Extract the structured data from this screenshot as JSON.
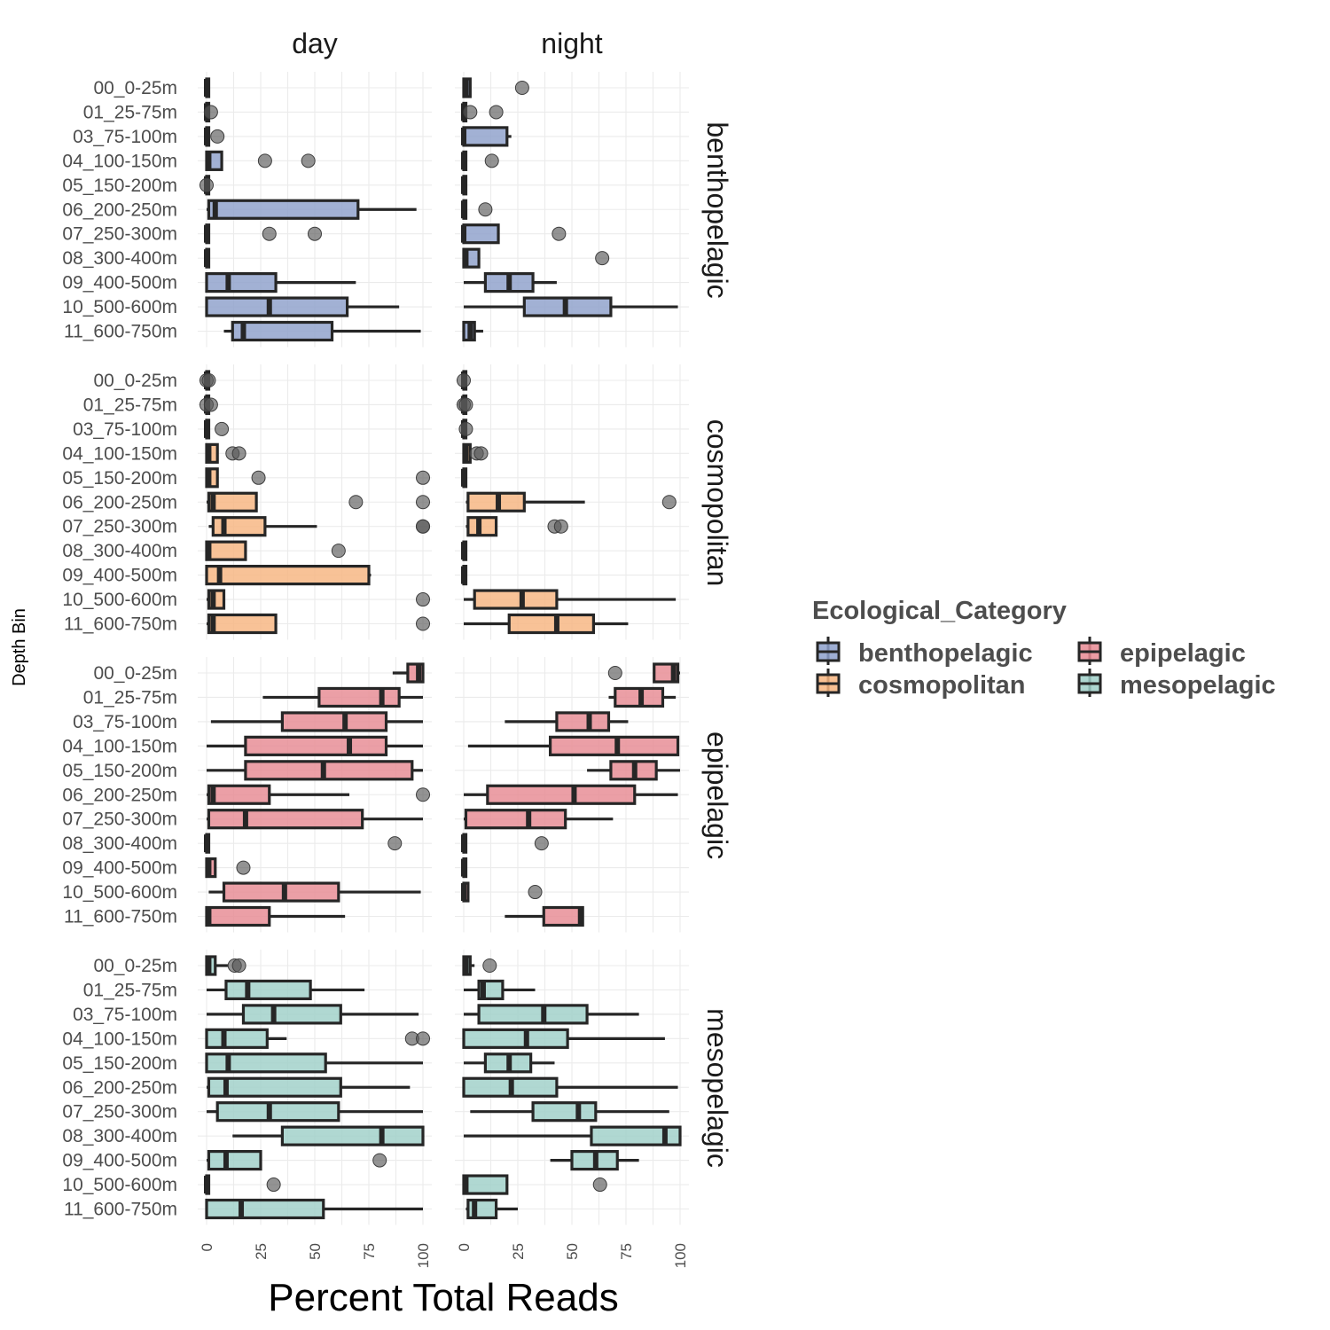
{
  "chart_data": {
    "type": "boxplot",
    "orientation": "horizontal",
    "facet_columns": [
      "day",
      "night"
    ],
    "facet_rows": [
      "benthopelagic",
      "cosmopolitan",
      "epipelagic",
      "mesopelagic"
    ],
    "xlabel": "Percent Total Reads",
    "ylabel": "Depth Bin",
    "xlim": [
      0,
      100
    ],
    "xticks": [
      "0",
      "25",
      "50",
      "75",
      "100"
    ],
    "depth_bins": [
      "00_0-25m",
      "01_25-75m",
      "03_75-100m",
      "04_100-150m",
      "05_150-200m",
      "06_200-250m",
      "07_250-300m",
      "08_300-400m",
      "09_400-500m",
      "10_500-600m",
      "11_600-750m"
    ],
    "legend": {
      "title": "Ecological_Category",
      "items": [
        {
          "label": "benthopelagic",
          "color": "#8da0cb"
        },
        {
          "label": "epipelagic",
          "color": "#e78a93"
        },
        {
          "label": "cosmopolitan",
          "color": "#f7b580"
        },
        {
          "label": "mesopelagic",
          "color": "#9fcfc8"
        }
      ]
    },
    "colors": {
      "benthopelagic": "#8da0cb",
      "cosmopolitan": "#f7b580",
      "epipelagic": "#e78a93",
      "mesopelagic": "#9fcfc8"
    },
    "panels": [
      {
        "row": "benthopelagic",
        "col": "day",
        "boxes": [
          [
            0,
            0,
            0,
            1,
            1,
            []
          ],
          [
            0,
            0,
            0,
            1,
            1,
            [
              2
            ]
          ],
          [
            0,
            0,
            0,
            1,
            1,
            [
              5
            ]
          ],
          [
            0,
            0,
            1,
            7,
            7,
            [
              27,
              47
            ]
          ],
          [
            0,
            0,
            0,
            0,
            0,
            [
              0
            ]
          ],
          [
            0,
            1,
            4,
            70,
            97,
            []
          ],
          [
            0,
            0,
            0,
            1,
            1,
            [
              29,
              50
            ]
          ],
          [
            0,
            0,
            0,
            1,
            1,
            []
          ],
          [
            0,
            0,
            10,
            32,
            69,
            []
          ],
          [
            0,
            0,
            29,
            65,
            89,
            []
          ],
          [
            8,
            12,
            17,
            58,
            99,
            []
          ]
        ]
      },
      {
        "row": "benthopelagic",
        "col": "night",
        "boxes": [
          [
            0,
            0,
            1,
            3,
            3,
            [
              27
            ]
          ],
          [
            0,
            0,
            0,
            1,
            1,
            [
              3,
              15
            ]
          ],
          [
            0,
            0,
            0,
            20,
            22,
            []
          ],
          [
            0,
            0,
            0,
            1,
            1,
            [
              13
            ]
          ],
          [
            0,
            0,
            0,
            1,
            1,
            []
          ],
          [
            0,
            0,
            0,
            1,
            1,
            [
              10
            ]
          ],
          [
            0,
            0,
            0,
            16,
            16,
            [
              44
            ]
          ],
          [
            0,
            0,
            1,
            7,
            7,
            [
              64
            ]
          ],
          [
            0,
            10,
            21,
            32,
            43,
            []
          ],
          [
            0,
            28,
            47,
            68,
            99,
            []
          ],
          [
            0,
            0,
            3,
            5,
            9,
            []
          ]
        ]
      },
      {
        "row": "cosmopolitan",
        "col": "day",
        "boxes": [
          [
            0,
            0,
            0,
            1,
            1,
            [
              0,
              1
            ]
          ],
          [
            0,
            0,
            0,
            1,
            1,
            [
              0,
              2
            ]
          ],
          [
            0,
            0,
            0,
            1,
            1,
            [
              7
            ]
          ],
          [
            0,
            0,
            1,
            5,
            5,
            [
              12,
              15
            ]
          ],
          [
            0,
            0,
            1,
            5,
            5,
            [
              24,
              100
            ]
          ],
          [
            0,
            1,
            3,
            23,
            23,
            [
              69,
              100
            ]
          ],
          [
            1,
            3,
            8,
            27,
            51,
            [
              100,
              100
            ]
          ],
          [
            0,
            0,
            1,
            18,
            18,
            [
              61
            ]
          ],
          [
            0,
            0,
            6,
            75,
            76,
            []
          ],
          [
            0,
            1,
            3,
            8,
            8,
            [
              100
            ]
          ],
          [
            0,
            1,
            3,
            32,
            32,
            [
              100
            ]
          ]
        ]
      },
      {
        "row": "cosmopolitan",
        "col": "night",
        "boxes": [
          [
            0,
            0,
            0,
            1,
            1,
            [
              0
            ]
          ],
          [
            0,
            0,
            0,
            1,
            1,
            [
              0,
              1
            ]
          ],
          [
            0,
            0,
            0,
            1,
            1,
            [
              1
            ]
          ],
          [
            0,
            0,
            1,
            3,
            3,
            [
              6,
              8
            ]
          ],
          [
            0,
            0,
            0,
            1,
            1,
            []
          ],
          [
            1,
            2,
            16,
            28,
            56,
            [
              95
            ]
          ],
          [
            1,
            2,
            7,
            15,
            15,
            [
              42,
              45
            ]
          ],
          [
            0,
            0,
            0,
            1,
            1,
            []
          ],
          [
            0,
            0,
            0,
            1,
            1,
            []
          ],
          [
            0,
            5,
            27,
            43,
            98,
            []
          ],
          [
            0,
            21,
            43,
            60,
            76,
            []
          ]
        ]
      },
      {
        "row": "epipelagic",
        "col": "day",
        "boxes": [
          [
            86,
            93,
            98,
            100,
            100,
            []
          ],
          [
            26,
            52,
            81,
            89,
            100,
            []
          ],
          [
            2,
            35,
            64,
            83,
            100,
            []
          ],
          [
            0,
            18,
            66,
            83,
            100,
            []
          ],
          [
            0,
            18,
            54,
            95,
            100,
            []
          ],
          [
            0,
            1,
            3,
            29,
            66,
            [
              100
            ]
          ],
          [
            0,
            1,
            18,
            72,
            100,
            []
          ],
          [
            0,
            0,
            0,
            1,
            1,
            [
              87
            ]
          ],
          [
            0,
            0,
            1,
            4,
            4,
            [
              17
            ]
          ],
          [
            1,
            8,
            36,
            61,
            99,
            []
          ],
          [
            0,
            0,
            1,
            29,
            64,
            []
          ]
        ]
      },
      {
        "row": "epipelagic",
        "col": "night",
        "boxes": [
          [
            88,
            88,
            97,
            99,
            100,
            [
              70
            ]
          ],
          [
            67,
            70,
            82,
            92,
            98,
            []
          ],
          [
            19,
            43,
            58,
            67,
            76,
            []
          ],
          [
            2,
            40,
            71,
            99,
            99,
            []
          ],
          [
            57,
            68,
            79,
            89,
            100,
            []
          ],
          [
            0,
            11,
            51,
            79,
            99,
            []
          ],
          [
            0,
            1,
            30,
            47,
            69,
            []
          ],
          [
            0,
            0,
            0,
            1,
            1,
            [
              36
            ]
          ],
          [
            0,
            0,
            0,
            1,
            1,
            []
          ],
          [
            0,
            0,
            0,
            2,
            2,
            [
              33
            ]
          ],
          [
            19,
            37,
            54,
            55,
            55,
            []
          ]
        ]
      },
      {
        "row": "mesopelagic",
        "col": "day",
        "boxes": [
          [
            0,
            0,
            1,
            4,
            10,
            [
              13,
              15
            ]
          ],
          [
            0,
            9,
            19,
            48,
            73,
            []
          ],
          [
            0,
            17,
            31,
            62,
            98,
            []
          ],
          [
            0,
            0,
            8,
            28,
            37,
            [
              95,
              100
            ]
          ],
          [
            0,
            0,
            10,
            55,
            100,
            []
          ],
          [
            0,
            1,
            9,
            62,
            94,
            []
          ],
          [
            0,
            5,
            29,
            61,
            100,
            []
          ],
          [
            12,
            35,
            81,
            100,
            100,
            []
          ],
          [
            0,
            1,
            9,
            25,
            25,
            [
              80
            ]
          ],
          [
            0,
            0,
            0,
            1,
            1,
            [
              31
            ]
          ],
          [
            0,
            0,
            16,
            54,
            100,
            []
          ]
        ]
      },
      {
        "row": "mesopelagic",
        "col": "night",
        "boxes": [
          [
            0,
            0,
            1,
            3,
            5,
            [
              12
            ]
          ],
          [
            0,
            7,
            9,
            18,
            33,
            []
          ],
          [
            0,
            7,
            37,
            57,
            81,
            []
          ],
          [
            0,
            0,
            29,
            48,
            93,
            []
          ],
          [
            0,
            10,
            21,
            31,
            42,
            []
          ],
          [
            0,
            0,
            22,
            43,
            99,
            []
          ],
          [
            3,
            32,
            53,
            61,
            95,
            []
          ],
          [
            0,
            59,
            93,
            100,
            100,
            []
          ],
          [
            40,
            50,
            61,
            71,
            81,
            []
          ],
          [
            0,
            0,
            1,
            20,
            20,
            [
              63
            ]
          ],
          [
            1,
            2,
            5,
            15,
            25,
            []
          ]
        ]
      }
    ]
  }
}
